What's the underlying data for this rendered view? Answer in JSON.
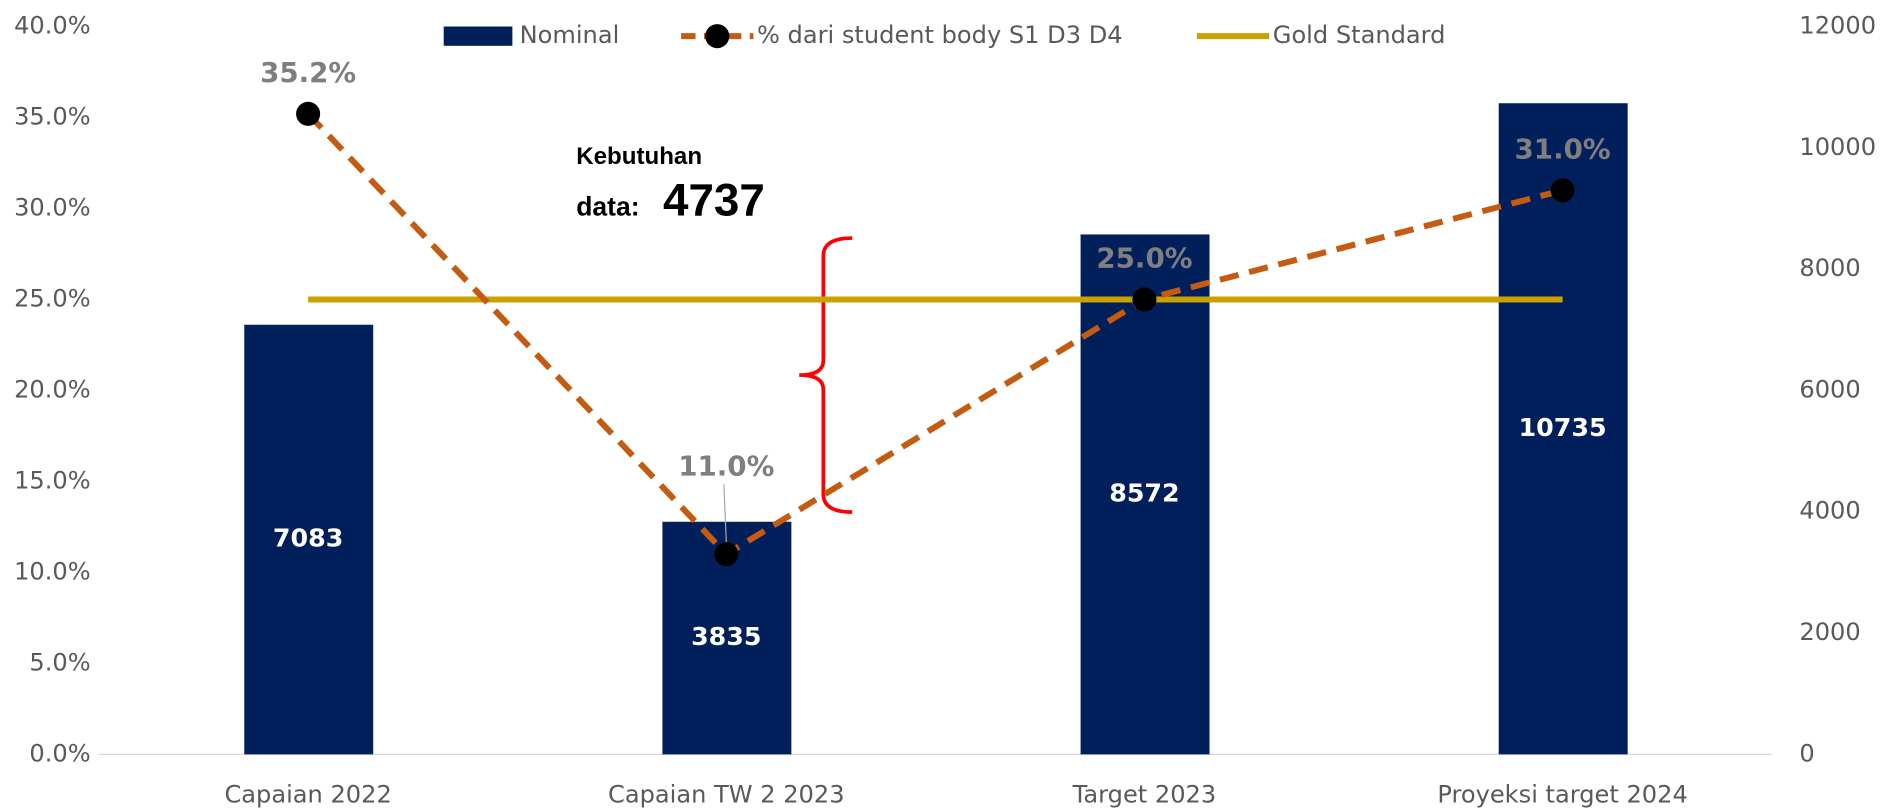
{
  "chart_data": {
    "type": "bar_line",
    "categories": [
      "Capaian 2022",
      "Capaian TW 2 2023",
      "Target 2023",
      "Proyeksi target 2024"
    ],
    "series": [
      {
        "name": "Nominal",
        "type": "bar",
        "axis": "y2",
        "color": "#001f5b",
        "values": [
          7083,
          3835,
          8572,
          10735
        ]
      },
      {
        "name": "% dari student body S1 D3 D4",
        "type": "line",
        "color": "#c55a11",
        "values": [
          35.2,
          11.0,
          25.0,
          31.0
        ],
        "value_labels": [
          "35.2%",
          "11.0%",
          "25.0%",
          "31.0%"
        ]
      },
      {
        "name": "Gold Standard",
        "type": "line",
        "color": "#c9a100",
        "values": [
          25,
          25,
          25,
          25
        ]
      }
    ],
    "ylim": [
      0,
      40
    ],
    "yticks": [
      {
        "value": 0,
        "label": "0.0%"
      },
      {
        "value": 5,
        "label": "5.0%"
      },
      {
        "value": 10,
        "label": "10.0%"
      },
      {
        "value": 15,
        "label": "15.0%"
      },
      {
        "value": 20,
        "label": "20.0%"
      },
      {
        "value": 25,
        "label": "25.0%"
      },
      {
        "value": 30,
        "label": "30.0%"
      },
      {
        "value": 35,
        "label": "35.0%"
      },
      {
        "value": 40,
        "label": "40.0%"
      }
    ],
    "y2lim": [
      0,
      12000
    ],
    "y2ticks": [
      0,
      2000,
      4000,
      6000,
      8000,
      10000,
      12000
    ],
    "legend": "top",
    "annotation": {
      "label_lines": [
        "Kebutuhan",
        "data:"
      ],
      "value": 4737
    }
  }
}
